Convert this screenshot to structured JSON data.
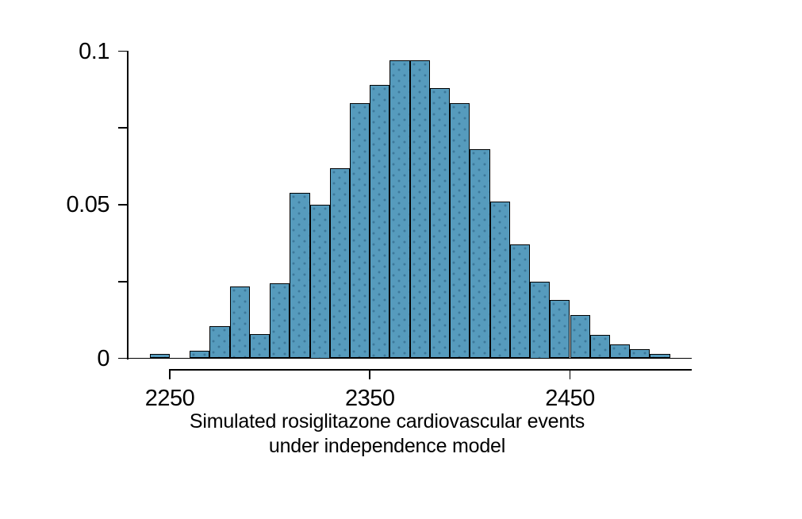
{
  "figure": {
    "background": "#ffffff"
  },
  "chart_data": {
    "type": "histogram",
    "title": "",
    "xlabel_lines": [
      "Simulated rosiglitazone cardiovascular events",
      "under independence model"
    ],
    "ylabel": "",
    "bin_width": 10,
    "bin_starts": [
      2240,
      2250,
      2260,
      2270,
      2280,
      2290,
      2300,
      2310,
      2320,
      2330,
      2340,
      2350,
      2360,
      2370,
      2380,
      2390,
      2400,
      2410,
      2420,
      2430,
      2440,
      2450,
      2460,
      2470,
      2480,
      2490
    ],
    "densities": [
      0.0015,
      0,
      0.0025,
      0.0105,
      0.0235,
      0.008,
      0.0245,
      0.054,
      0.05,
      0.062,
      0.083,
      0.089,
      0.097,
      0.097,
      0.088,
      0.083,
      0.068,
      0.051,
      0.037,
      0.025,
      0.019,
      0.014,
      0.0075,
      0.0045,
      0.003,
      0.0015
    ],
    "x_tick_values": [
      2250,
      2350,
      2450
    ],
    "x_tick_labels": [
      "2250",
      "2350",
      "2450"
    ],
    "y_tick_values": [
      0,
      0.05,
      0.1
    ],
    "y_tick_labels": [
      "0",
      "0.05",
      "0.1"
    ],
    "y_minor_tick_values": [
      0.025,
      0.075
    ],
    "xlim": [
      2250,
      2510
    ],
    "ylim": [
      0,
      0.1
    ],
    "grid": false,
    "legend": "none",
    "colors": {
      "bar_fill": "#569BBD",
      "bar_edge": "#000000",
      "axis": "#000000",
      "text": "#000000"
    }
  }
}
